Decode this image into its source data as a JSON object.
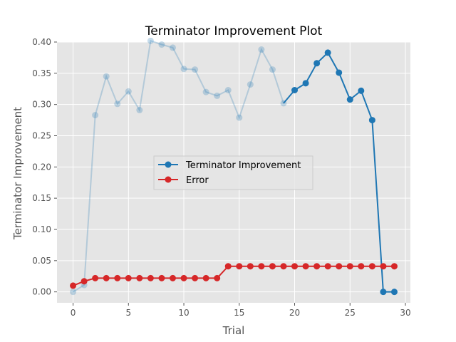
{
  "chart_data": {
    "type": "line",
    "title": "Terminator Improvement Plot",
    "xlabel": "Trial",
    "ylabel": "Terminator Improvement",
    "xlim": [
      -1.45,
      30.45
    ],
    "ylim": [
      -0.0175,
      0.4
    ],
    "xticks": [
      "0",
      "5",
      "10",
      "15",
      "20",
      "25",
      "30"
    ],
    "xtick_values": [
      0,
      5,
      10,
      15,
      20,
      25,
      30
    ],
    "yticks": [
      "0.00",
      "0.05",
      "0.10",
      "0.15",
      "0.20",
      "0.25",
      "0.30",
      "0.35",
      "0.40"
    ],
    "ytick_values": [
      0.0,
      0.05,
      0.1,
      0.15,
      0.2,
      0.25,
      0.3,
      0.35,
      0.4
    ],
    "grid": true,
    "legend_position": "center",
    "background": "#e5e5e5",
    "series": [
      {
        "name": "Terminator Improvement",
        "color": "#1f77b4",
        "faded_until_index": 19,
        "faded_opacity": 0.25,
        "x": [
          0,
          1,
          2,
          3,
          4,
          5,
          6,
          7,
          8,
          9,
          10,
          11,
          12,
          13,
          14,
          15,
          16,
          17,
          18,
          19,
          20,
          21,
          22,
          23,
          24,
          25,
          26,
          27,
          28,
          29
        ],
        "values": [
          0.0,
          0.011,
          0.283,
          0.345,
          0.301,
          0.321,
          0.291,
          0.402,
          0.396,
          0.391,
          0.357,
          0.356,
          0.32,
          0.314,
          0.323,
          0.279,
          0.332,
          0.388,
          0.356,
          0.302,
          0.323,
          0.334,
          0.366,
          0.383,
          0.351,
          0.308,
          0.322,
          0.275,
          0.0,
          0.0
        ]
      },
      {
        "name": "Error",
        "color": "#d62728",
        "x": [
          0,
          1,
          2,
          3,
          4,
          5,
          6,
          7,
          8,
          9,
          10,
          11,
          12,
          13,
          14,
          15,
          16,
          17,
          18,
          19,
          20,
          21,
          22,
          23,
          24,
          25,
          26,
          27,
          28,
          29
        ],
        "values": [
          0.01,
          0.017,
          0.022,
          0.022,
          0.022,
          0.022,
          0.022,
          0.022,
          0.022,
          0.022,
          0.022,
          0.022,
          0.022,
          0.022,
          0.041,
          0.041,
          0.041,
          0.041,
          0.041,
          0.041,
          0.041,
          0.041,
          0.041,
          0.041,
          0.041,
          0.041,
          0.041,
          0.041,
          0.041,
          0.041
        ]
      }
    ]
  }
}
